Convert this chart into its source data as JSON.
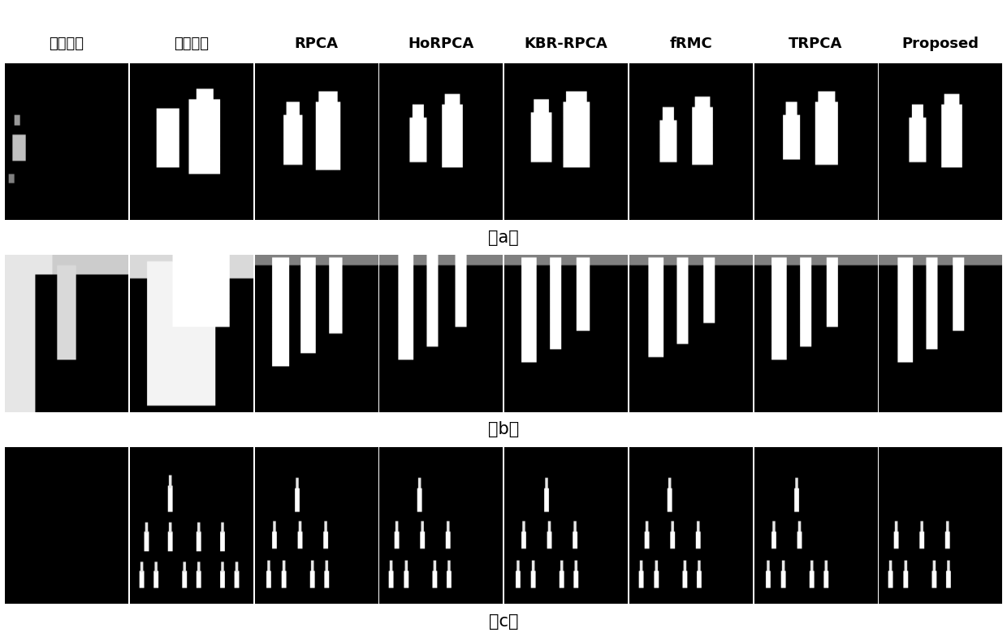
{
  "col_labels": [
    "原始图像",
    "真实图像",
    "RPCA",
    "HoRPCA",
    "KBR-RPCA",
    "fRMC",
    "TRPCA",
    "Proposed"
  ],
  "row_labels": [
    "（a）",
    "（b）",
    "（c）"
  ],
  "fig_bg": "#ffffff",
  "panel_bg": "#000000",
  "text_color": "#000000",
  "figsize": [
    12.4,
    7.85
  ],
  "dpi": 100,
  "header_fontsize": 13,
  "label_fontsize": 15
}
